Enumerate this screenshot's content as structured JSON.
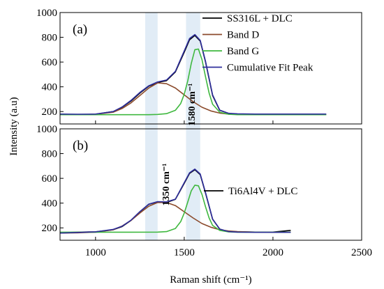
{
  "chart_data": [
    {
      "type": "line",
      "panel_label": "(a)",
      "xlim": [
        800,
        2500
      ],
      "ylim": [
        100,
        1000
      ],
      "yticks": [
        200,
        400,
        600,
        800,
        1000
      ],
      "series": [
        {
          "name": "SS316L + DLC",
          "color": "#000000",
          "x": [
            800,
            900,
            1000,
            1100,
            1150,
            1200,
            1250,
            1300,
            1350,
            1400,
            1450,
            1500,
            1530,
            1560,
            1590,
            1620,
            1660,
            1700,
            1750,
            1800,
            1900,
            2000,
            2100,
            2200,
            2300
          ],
          "y": [
            178,
            176,
            178,
            200,
            235,
            285,
            350,
            405,
            435,
            450,
            520,
            680,
            780,
            815,
            770,
            600,
            330,
            210,
            185,
            180,
            178,
            178,
            178,
            178,
            178
          ]
        },
        {
          "name": "Band D",
          "color": "#8b4a2b",
          "x": [
            800,
            900,
            1000,
            1100,
            1150,
            1200,
            1250,
            1300,
            1350,
            1400,
            1450,
            1500,
            1550,
            1600,
            1650,
            1700,
            1750,
            1800,
            1900,
            2000,
            2100,
            2200,
            2300
          ],
          "y": [
            175,
            175,
            178,
            195,
            225,
            270,
            330,
            390,
            432,
            425,
            390,
            335,
            280,
            235,
            205,
            188,
            180,
            177,
            175,
            175,
            175,
            175,
            175
          ]
        },
        {
          "name": "Band G",
          "color": "#3fb83f",
          "x": [
            800,
            1000,
            1200,
            1300,
            1350,
            1400,
            1450,
            1480,
            1500,
            1520,
            1540,
            1560,
            1580,
            1600,
            1620,
            1640,
            1660,
            1700,
            1750,
            1800,
            2000,
            2300
          ],
          "y": [
            175,
            175,
            175,
            175,
            177,
            183,
            210,
            265,
            340,
            450,
            590,
            700,
            705,
            620,
            480,
            350,
            260,
            195,
            178,
            175,
            175,
            175
          ]
        },
        {
          "name": "Cumulative Fit Peak",
          "color": "#2e2e9c",
          "x": [
            800,
            900,
            1000,
            1100,
            1150,
            1200,
            1250,
            1300,
            1350,
            1400,
            1450,
            1500,
            1530,
            1560,
            1590,
            1620,
            1660,
            1700,
            1750,
            1800,
            1900,
            2000,
            2100,
            2200,
            2300
          ],
          "y": [
            180,
            178,
            180,
            200,
            237,
            290,
            355,
            408,
            440,
            455,
            525,
            690,
            790,
            822,
            775,
            605,
            335,
            212,
            186,
            182,
            180,
            180,
            180,
            180,
            180
          ]
        }
      ]
    },
    {
      "type": "line",
      "panel_label": "(b)",
      "xlim": [
        800,
        2500
      ],
      "ylim": [
        100,
        1000
      ],
      "yticks": [
        200,
        400,
        600,
        800,
        1000
      ],
      "series": [
        {
          "name": "Ti6Al4V + DLC",
          "color": "#000000",
          "x": [
            800,
            900,
            1000,
            1100,
            1150,
            1200,
            1250,
            1300,
            1350,
            1400,
            1450,
            1500,
            1530,
            1560,
            1590,
            1620,
            1660,
            1700,
            1750,
            1800,
            1900,
            2000,
            2100
          ],
          "y": [
            160,
            165,
            168,
            185,
            210,
            260,
            330,
            390,
            410,
            405,
            430,
            560,
            640,
            670,
            630,
            480,
            270,
            190,
            170,
            168,
            166,
            166,
            180
          ]
        },
        {
          "name": "Band D",
          "color": "#8b4a2b",
          "x": [
            800,
            900,
            1000,
            1100,
            1150,
            1200,
            1250,
            1300,
            1350,
            1400,
            1450,
            1500,
            1550,
            1600,
            1650,
            1700,
            1750,
            1800,
            1900,
            2000,
            2100
          ],
          "y": [
            158,
            160,
            165,
            185,
            215,
            260,
            320,
            375,
            405,
            405,
            380,
            330,
            280,
            235,
            205,
            185,
            175,
            170,
            166,
            165,
            165
          ]
        },
        {
          "name": "Band G",
          "color": "#3fb83f",
          "x": [
            800,
            1000,
            1200,
            1350,
            1400,
            1450,
            1480,
            1500,
            1520,
            1540,
            1560,
            1580,
            1600,
            1620,
            1640,
            1660,
            1700,
            1750,
            1800,
            2000,
            2100
          ],
          "y": [
            165,
            165,
            165,
            166,
            170,
            195,
            250,
            320,
            410,
            500,
            545,
            540,
            470,
            370,
            280,
            220,
            180,
            168,
            165,
            165,
            165
          ]
        },
        {
          "name": "Cumulative Fit Peak",
          "color": "#2e2e9c",
          "x": [
            800,
            900,
            1000,
            1100,
            1150,
            1200,
            1250,
            1300,
            1350,
            1400,
            1450,
            1500,
            1530,
            1560,
            1590,
            1620,
            1660,
            1700,
            1750,
            1800,
            1900,
            2000,
            2100
          ],
          "y": [
            158,
            163,
            168,
            188,
            213,
            262,
            332,
            392,
            412,
            410,
            432,
            565,
            645,
            675,
            635,
            485,
            272,
            190,
            170,
            166,
            164,
            164,
            164
          ]
        }
      ]
    }
  ],
  "xticks": [
    1000,
    1500,
    2000,
    2500
  ],
  "xlabel": "Raman shift (cm⁻¹)",
  "ylabel": "Intensity (a.u)",
  "bands": [
    {
      "label": "1350 cm⁻¹",
      "x_from": 1280,
      "x_to": 1350
    },
    {
      "label": "1580 cm⁻¹",
      "x_from": 1510,
      "x_to": 1590
    }
  ],
  "legend_top": [
    "SS316L + DLC",
    "Band D",
    "Band G",
    "Cumulative Fit Peak"
  ],
  "legend_bottom": [
    "Ti6Al4V + DLC"
  ],
  "colors": {
    "frame": "#000000",
    "band_highlight": "#dce9f5"
  }
}
